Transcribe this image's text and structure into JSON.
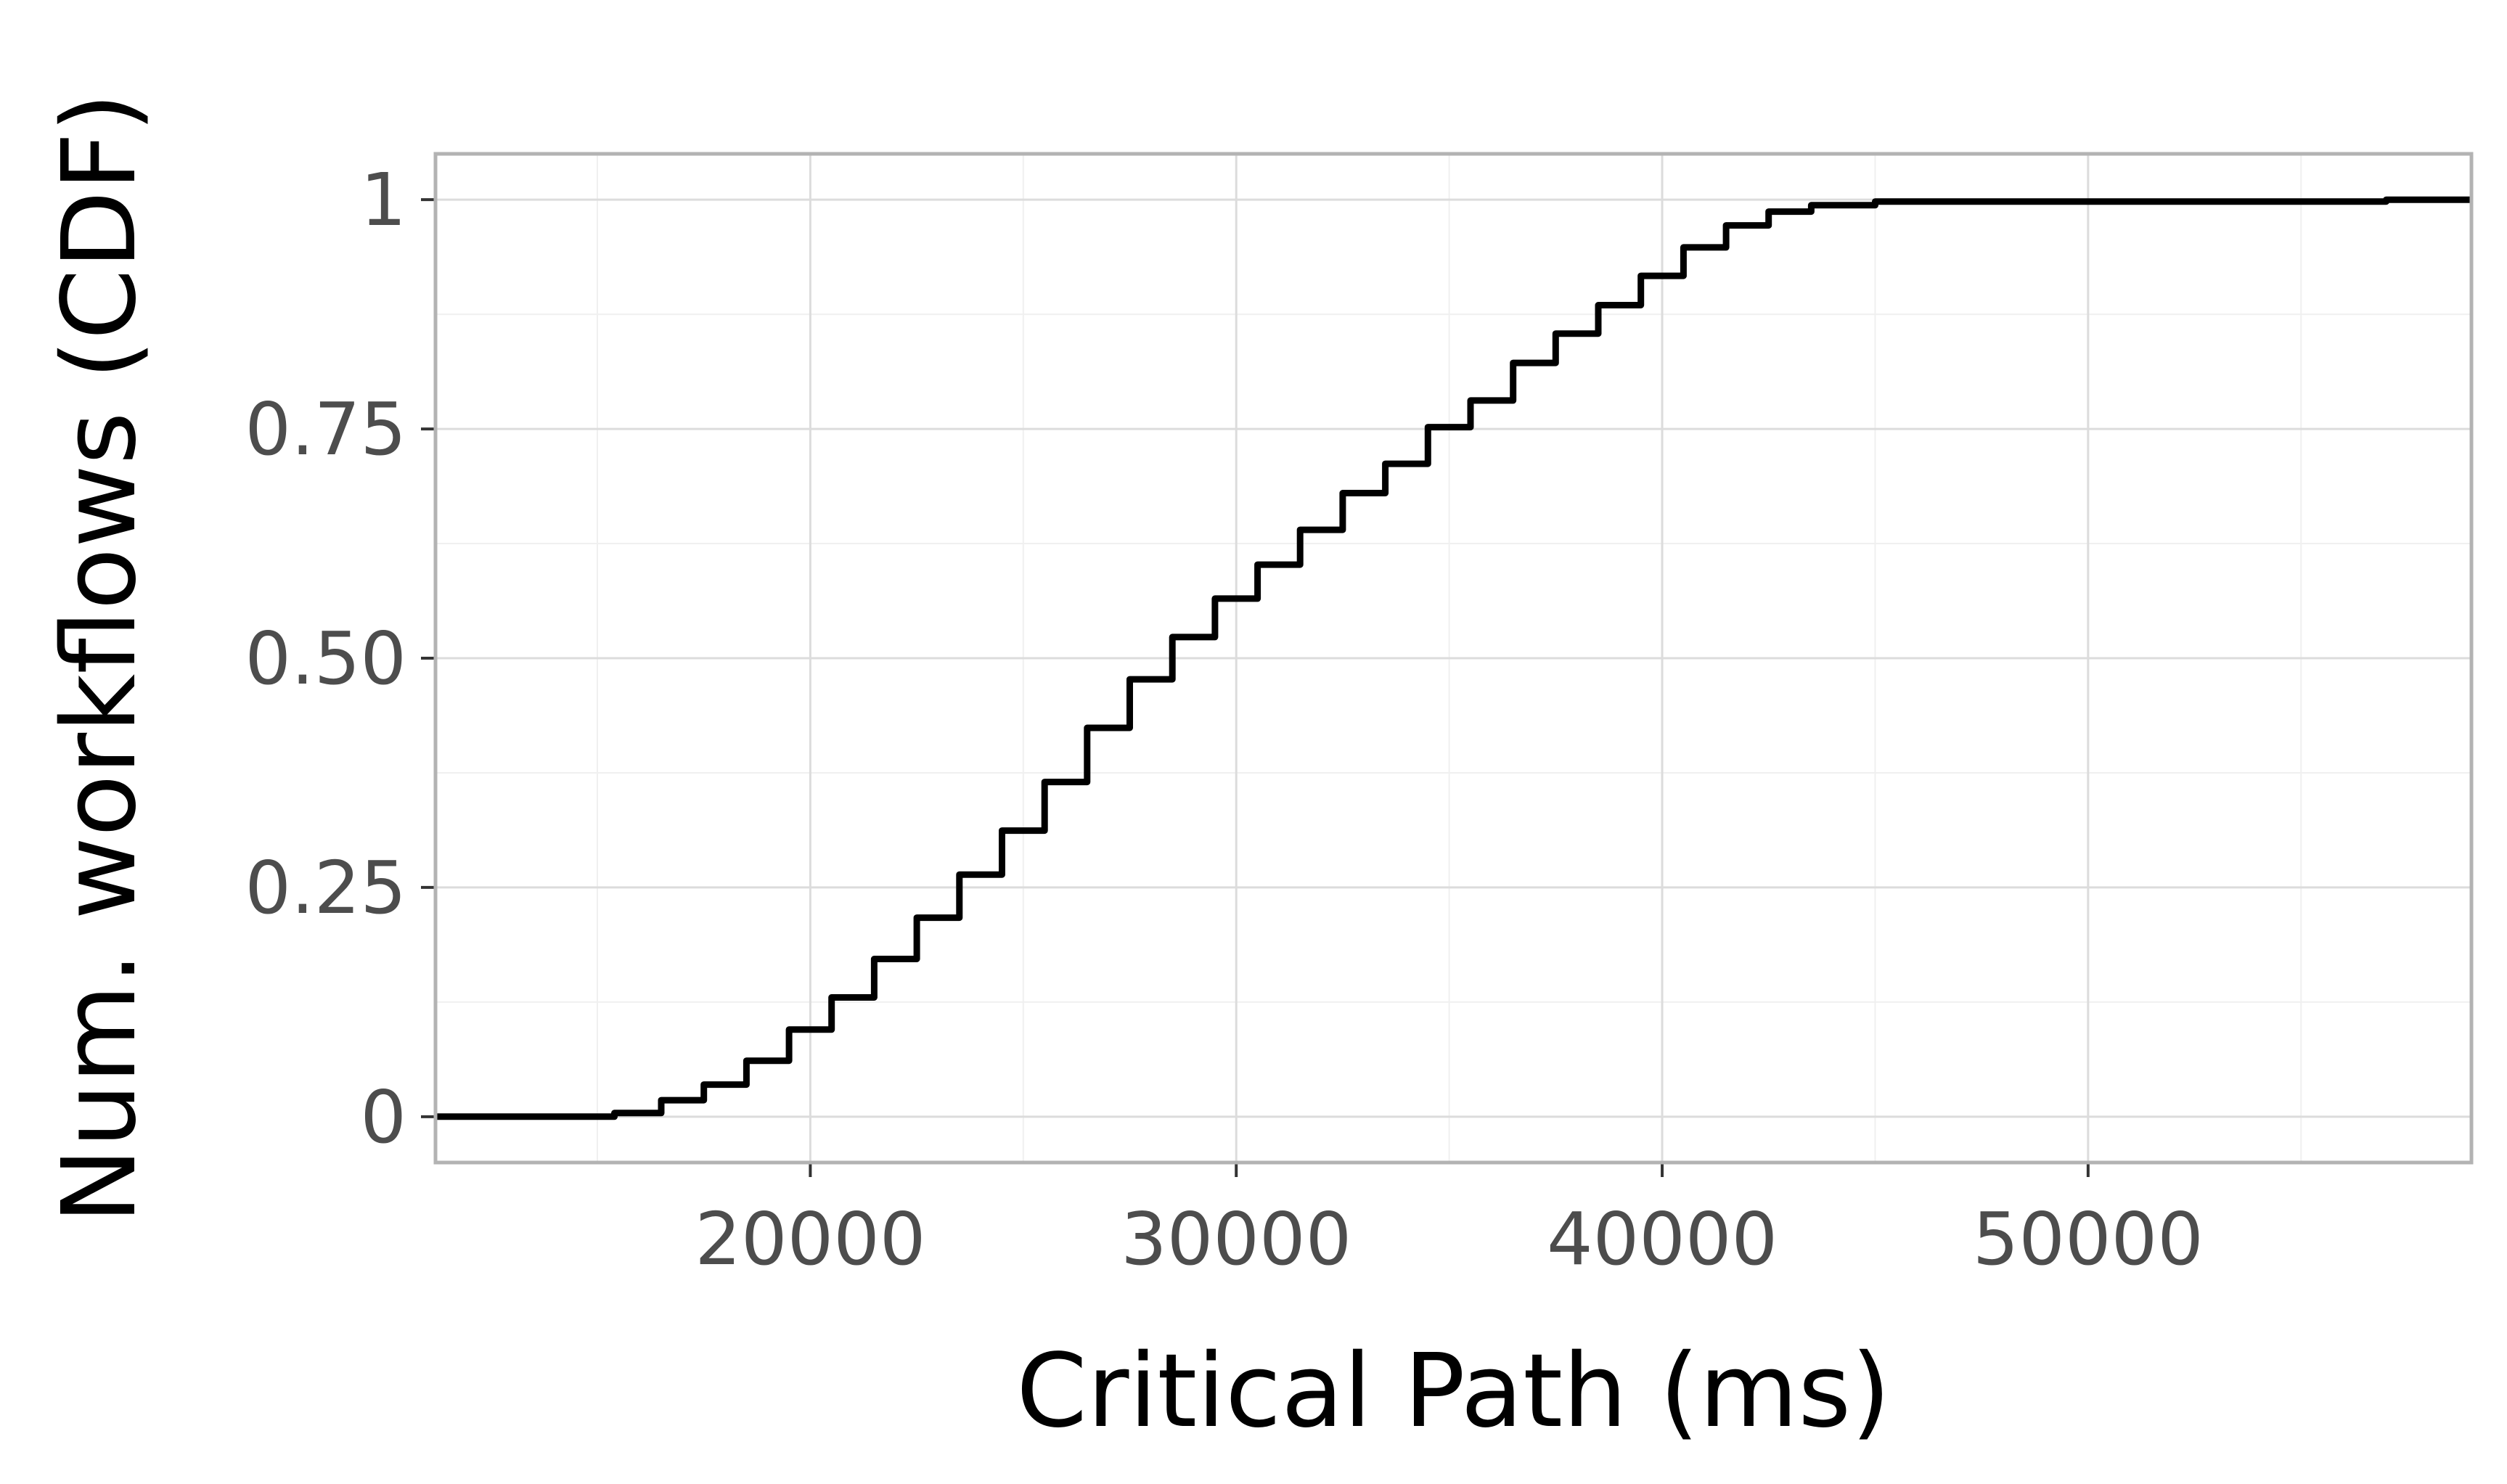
{
  "chart_data": {
    "type": "line",
    "title": "",
    "xlabel": "Critical Path (ms)",
    "ylabel": "Num. workflows (CDF)",
    "xlim": [
      11200,
      59000
    ],
    "ylim": [
      -0.05,
      1.05
    ],
    "x_ticks": [
      20000,
      30000,
      40000,
      50000
    ],
    "x_tick_labels": [
      "20000",
      "30000",
      "40000",
      "50000"
    ],
    "y_ticks": [
      0,
      0.25,
      0.5,
      0.75,
      1
    ],
    "y_tick_labels": [
      "0",
      "0.25",
      "0.50",
      "0.75",
      "1"
    ],
    "grid": true,
    "legend": "none",
    "line_color": "#000000",
    "series": [
      {
        "step": true,
        "x": [
          11200,
          15400,
          16500,
          17500,
          18500,
          19500,
          20500,
          21500,
          22500,
          23500,
          24500,
          25500,
          26500,
          27500,
          28500,
          29500,
          30500,
          31500,
          32500,
          33500,
          34500,
          35500,
          36500,
          37500,
          38500,
          39500,
          40500,
          41500,
          42500,
          43500,
          45000,
          57000,
          59000
        ],
        "y": [
          0,
          0.004,
          0.018,
          0.035,
          0.061,
          0.095,
          0.13,
          0.172,
          0.217,
          0.264,
          0.312,
          0.365,
          0.424,
          0.477,
          0.523,
          0.565,
          0.602,
          0.64,
          0.68,
          0.712,
          0.752,
          0.781,
          0.822,
          0.854,
          0.885,
          0.917,
          0.948,
          0.972,
          0.987,
          0.994,
          0.998,
          1.0,
          1.0
        ]
      }
    ]
  }
}
